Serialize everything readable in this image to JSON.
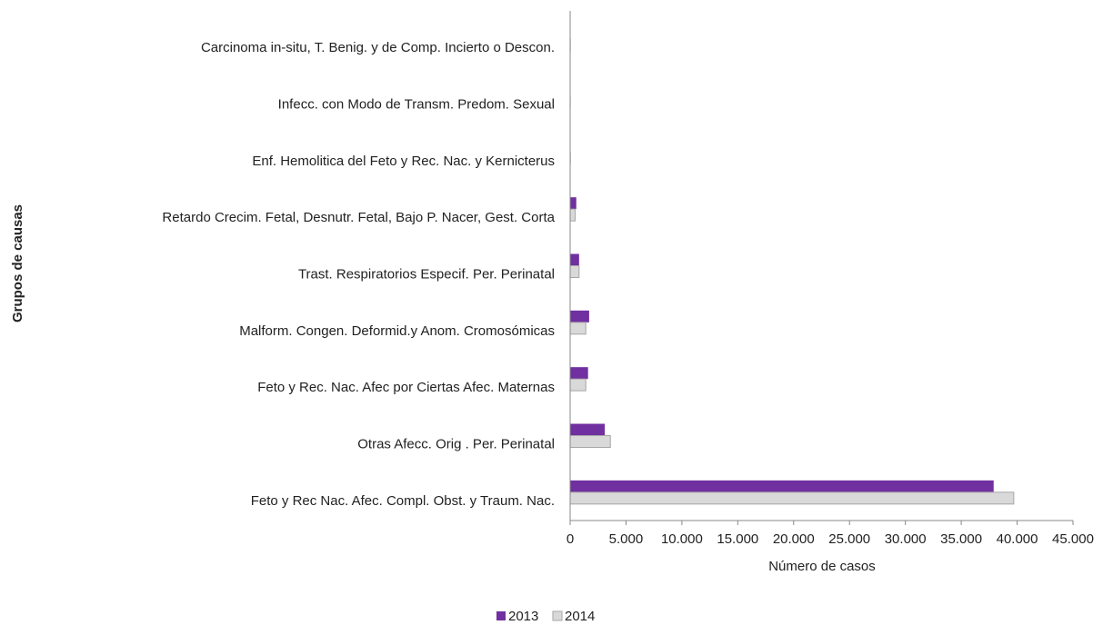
{
  "chart_data": {
    "type": "bar",
    "orientation": "horizontal",
    "xlabel": "Número de casos",
    "ylabel": "Grupos de causas",
    "categories": [
      "Feto y Rec Nac. Afec. Compl. Obst. y Traum. Nac.",
      "Otras Afecc. Orig . Per. Perinatal",
      "Feto y Rec. Nac. Afec por Ciertas Afec. Maternas",
      "Malform. Congen. Deformid.y Anom. Cromosómicas",
      "Trast. Respiratorios Especif. Per. Perinatal",
      "Retardo Crecim. Fetal, Desnutr. Fetal, Bajo P. Nacer, Gest. Corta",
      "Enf. Hemolitica del Feto y Rec. Nac. y Kernicterus",
      "Infecc. con Modo de Transm. Predom. Sexual",
      "Carcinoma in-situ, T. Benig. y de Comp. Incierto o Descon."
    ],
    "series": [
      {
        "name": "2013",
        "color": "#7030a0",
        "values": [
          37900,
          3100,
          1600,
          1700,
          800,
          550,
          20,
          15,
          20
        ]
      },
      {
        "name": "2014",
        "color": "#d9d9d9",
        "values": [
          39700,
          3600,
          1400,
          1400,
          800,
          450,
          20,
          10,
          15
        ]
      }
    ],
    "xlim": [
      0,
      45000
    ],
    "xticks": [
      0,
      {
        "value": 5000,
        "label": "5.000"
      },
      {
        "value": 10000,
        "label": "10.000"
      },
      {
        "value": 15000,
        "label": "15.000"
      },
      {
        "value": 20000,
        "label": "20.000"
      },
      {
        "value": 25000,
        "label": "25.000"
      },
      {
        "value": 30000,
        "label": "30.000"
      },
      {
        "value": 35000,
        "label": "35.000"
      },
      {
        "value": 40000,
        "label": "40.000"
      },
      {
        "value": 45000,
        "label": "45.000"
      }
    ],
    "legend": "bottom"
  }
}
